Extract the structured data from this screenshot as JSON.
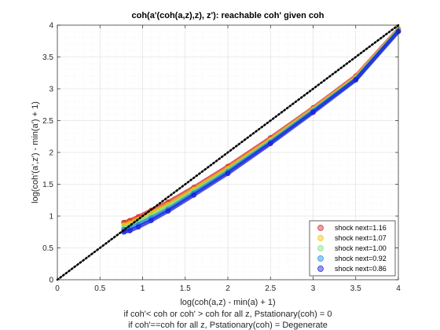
{
  "chart_data": {
    "type": "scatter",
    "title": "coh(a'(coh(a,z),z), z'): reachable coh' given coh",
    "xlabel": "log(coh(a,z) - min(a) + 1)",
    "xlabel_notes": [
      "if coh'< coh or coh' > coh for all z, Pstationary(coh) = 0",
      "if coh'==coh for all z, Pstationary(coh) = Degenerate"
    ],
    "ylabel": "log(coh'(a',z') - min(a') + 1)",
    "xlim": [
      0,
      4
    ],
    "ylim": [
      0,
      4
    ],
    "xticks": [
      0,
      0.5,
      1,
      1.5,
      2,
      2.5,
      3,
      3.5,
      4
    ],
    "yticks": [
      0,
      0.5,
      1,
      1.5,
      2,
      2.5,
      3,
      3.5,
      4
    ],
    "xtick_labels": [
      "0",
      "0.5",
      "1",
      "1.5",
      "2",
      "2.5",
      "3",
      "3.5",
      "4"
    ],
    "ytick_labels": [
      "0",
      "0.5",
      "1",
      "1.5",
      "2",
      "2.5",
      "3",
      "3.5",
      "4"
    ],
    "grid": true,
    "minor_grid": true,
    "legend_position": "bottom-right",
    "reference_line": {
      "style": "dotted",
      "color": "#000000",
      "x": [
        0,
        4
      ],
      "y": [
        0,
        4
      ]
    },
    "series": [
      {
        "name": "shock next=1.16",
        "color": "#d62728",
        "x": [
          0.78,
          0.85,
          0.95,
          1.1,
          1.3,
          1.6,
          2.0,
          2.5,
          3.0,
          3.5,
          4.0
        ],
        "y": [
          0.9,
          0.93,
          0.99,
          1.09,
          1.22,
          1.45,
          1.78,
          2.23,
          2.7,
          3.2,
          3.94
        ]
      },
      {
        "name": "shock next=1.07",
        "color": "#f2c500",
        "x": [
          0.78,
          0.85,
          0.95,
          1.1,
          1.3,
          1.6,
          2.0,
          2.5,
          3.0,
          3.5,
          4.0
        ],
        "y": [
          0.86,
          0.89,
          0.95,
          1.05,
          1.18,
          1.42,
          1.75,
          2.2,
          2.68,
          3.18,
          3.93
        ]
      },
      {
        "name": "shock next=1.00",
        "color": "#7fe07f",
        "x": [
          0.78,
          0.85,
          0.95,
          1.1,
          1.3,
          1.6,
          2.0,
          2.5,
          3.0,
          3.5,
          4.0
        ],
        "y": [
          0.82,
          0.85,
          0.91,
          1.01,
          1.15,
          1.39,
          1.72,
          2.18,
          2.66,
          3.16,
          3.92
        ]
      },
      {
        "name": "shock next=0.92",
        "color": "#1f8fe0",
        "x": [
          0.78,
          0.85,
          0.95,
          1.1,
          1.3,
          1.6,
          2.0,
          2.5,
          3.0,
          3.5,
          4.0
        ],
        "y": [
          0.79,
          0.81,
          0.87,
          0.97,
          1.11,
          1.36,
          1.7,
          2.16,
          2.65,
          3.15,
          3.91
        ]
      },
      {
        "name": "shock next=0.86",
        "color": "#1a1adb",
        "x": [
          0.78,
          0.85,
          0.95,
          1.1,
          1.3,
          1.6,
          2.0,
          2.5,
          3.0,
          3.5,
          4.0
        ],
        "y": [
          0.75,
          0.77,
          0.83,
          0.93,
          1.08,
          1.33,
          1.67,
          2.14,
          2.63,
          3.14,
          3.9
        ]
      }
    ]
  }
}
